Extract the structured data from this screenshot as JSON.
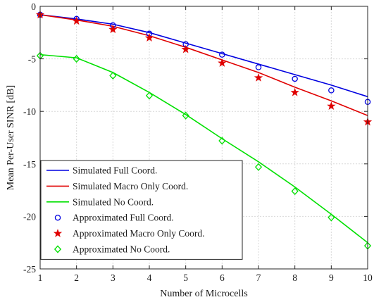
{
  "chart_data": {
    "type": "line",
    "xlabel": "Number of Microcells",
    "ylabel": "Mean Per-User SINR [dB]",
    "xlim": [
      1,
      10
    ],
    "ylim": [
      -25,
      0
    ],
    "xticks": [
      1,
      2,
      3,
      4,
      5,
      6,
      7,
      8,
      9,
      10
    ],
    "yticks": [
      0,
      -5,
      -10,
      -15,
      -20,
      -25
    ],
    "grid": true,
    "legend_position": "bottom-left",
    "x": [
      1,
      2,
      3,
      4,
      5,
      6,
      7,
      8,
      9,
      10
    ],
    "series": [
      {
        "name": "Simulated Full Coord.",
        "style": "line",
        "color": "#0000e0",
        "values": [
          -0.8,
          -1.2,
          -1.7,
          -2.5,
          -3.5,
          -4.5,
          -5.5,
          -6.5,
          -7.5,
          -8.6
        ]
      },
      {
        "name": "Simulated Macro Only Coord.",
        "style": "line",
        "color": "#e00000",
        "values": [
          -0.8,
          -1.3,
          -1.9,
          -2.8,
          -3.9,
          -5.1,
          -6.3,
          -7.7,
          -9.0,
          -10.4
        ]
      },
      {
        "name": "Simulated No Coord.",
        "style": "line",
        "color": "#00e000",
        "values": [
          -4.6,
          -4.9,
          -6.3,
          -8.2,
          -10.3,
          -12.6,
          -14.8,
          -17.2,
          -19.8,
          -22.5
        ]
      },
      {
        "name": "Approximated Full Coord.",
        "style": "marker",
        "marker": "circle",
        "color": "#0000e0",
        "values": [
          -0.8,
          -1.2,
          -1.8,
          -2.6,
          -3.6,
          -4.6,
          -5.8,
          -6.9,
          -8.0,
          -9.1
        ]
      },
      {
        "name": "Approximated Macro Only Coord.",
        "style": "marker",
        "marker": "star",
        "color": "#e00000",
        "values": [
          -0.8,
          -1.4,
          -2.2,
          -3.0,
          -4.1,
          -5.4,
          -6.8,
          -8.2,
          -9.5,
          -11.0
        ]
      },
      {
        "name": "Approximated No Coord.",
        "style": "marker",
        "marker": "diamond",
        "color": "#00e000",
        "values": [
          -4.7,
          -5.0,
          -6.6,
          -8.5,
          -10.4,
          -12.8,
          -15.3,
          -17.6,
          -20.1,
          -22.8
        ]
      }
    ]
  }
}
